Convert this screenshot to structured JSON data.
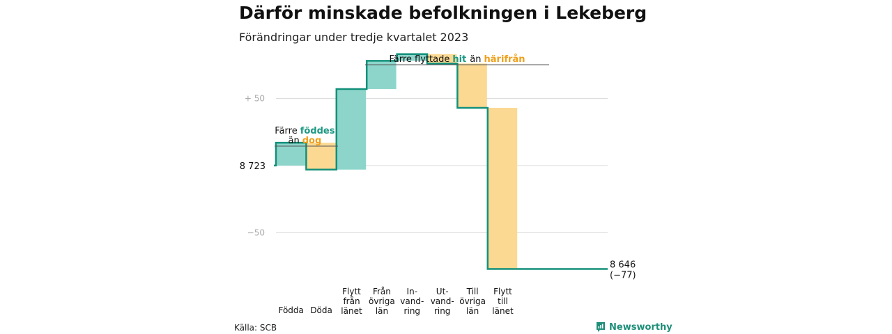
{
  "title": "Därför minskade befolkningen i Lekeberg",
  "subtitle": "Förändringar under tredje kvartalet 2023",
  "source": "Källa: SCB",
  "brand": {
    "name": "Newsworthy",
    "icon": "newsworthy-logo-icon"
  },
  "colors": {
    "increase": "#8dd5cb",
    "decrease": "#fbd993",
    "line": "#13907a",
    "accent_green": "#1b9883",
    "accent_orange": "#efa01c",
    "grid": "#dddddd"
  },
  "chart_data": {
    "type": "waterfall",
    "start_value": 8723,
    "start_label": "8 723",
    "end_value": 8646,
    "end_label": "8 646",
    "change_label": "(−77)",
    "yticks": [
      {
        "value": 50,
        "label": "+ 50"
      },
      {
        "value": -50,
        "label": "−50"
      }
    ],
    "ylim": [
      -84,
      86
    ],
    "steps": [
      {
        "category": [
          "Födda"
        ],
        "change": 17
      },
      {
        "category": [
          "Döda"
        ],
        "change": -20
      },
      {
        "category": [
          "Flytt",
          "från",
          "länet"
        ],
        "change": 60
      },
      {
        "category": [
          "Från",
          "övriga",
          "län"
        ],
        "change": 21
      },
      {
        "category": [
          "In-",
          "vand-",
          "ring"
        ],
        "change": 5
      },
      {
        "category": [
          "Ut-",
          "vand-",
          "ring"
        ],
        "change": -7
      },
      {
        "category": [
          "Till",
          "övriga",
          "län"
        ],
        "change": -33
      },
      {
        "category": [
          "Flytt",
          "till",
          "länet"
        ],
        "change": -120
      }
    ],
    "annotations": [
      {
        "text": "Färre",
        "highlight": "föddes",
        "text2": "än",
        "highlight2": "dog"
      },
      {
        "text": "Färre flyttade",
        "highlight": "hit",
        "text2": "än",
        "highlight2": "härifrån"
      }
    ]
  }
}
